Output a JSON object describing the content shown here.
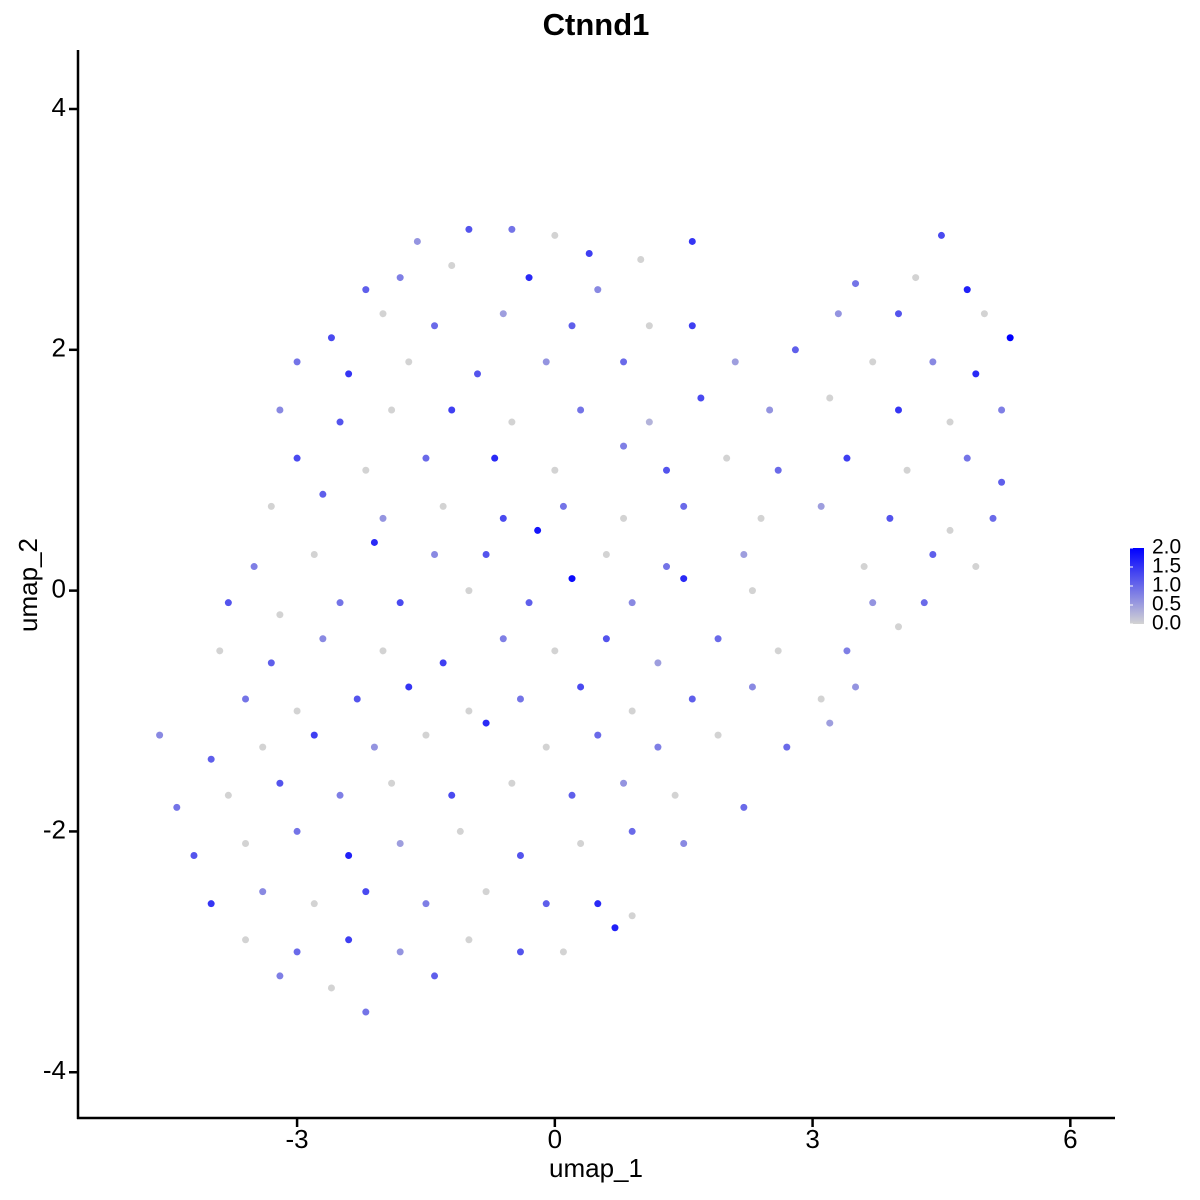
{
  "chart_data": {
    "type": "scatter",
    "title": "Ctnnd1",
    "x_label": "umap_1",
    "y_label": "umap_2",
    "xlim": [
      -5.55,
      6.52
    ],
    "ylim": [
      -4.38,
      4.49
    ],
    "xticks": [
      -3,
      0,
      3,
      6
    ],
    "yticks": [
      -4,
      -2,
      0,
      2,
      4
    ],
    "colors": [
      "#d3d3d3",
      "#0000ff"
    ],
    "colorbar": {
      "lim": [
        0,
        2
      ],
      "ticks": [
        {
          "value": 0,
          "label": "0.0"
        },
        {
          "value": 0.5,
          "label": "0.5"
        },
        {
          "value": 1,
          "label": "1.0"
        },
        {
          "value": 1.5,
          "label": "1.5"
        },
        {
          "value": 2,
          "label": "2.0"
        }
      ]
    },
    "x": [
      -1.6,
      -1.0,
      -0.5,
      0.0,
      0.4,
      1.6,
      4.5,
      -2.2,
      -1.8,
      -1.2,
      -0.3,
      0.5,
      1.0,
      3.5,
      4.2,
      4.8,
      -2.6,
      -2.0,
      -1.4,
      -0.6,
      0.2,
      1.1,
      1.6,
      3.3,
      4.0,
      5.0,
      5.3,
      -3.0,
      -2.4,
      -1.7,
      -0.9,
      -0.1,
      0.8,
      2.1,
      2.8,
      3.7,
      4.4,
      4.9,
      -3.2,
      -2.5,
      -1.9,
      -1.2,
      -0.5,
      0.3,
      1.1,
      1.7,
      2.5,
      3.2,
      4.0,
      4.6,
      5.2,
      -3.0,
      -2.2,
      -1.5,
      -0.7,
      0.0,
      0.8,
      1.3,
      2.0,
      2.6,
      3.4,
      4.1,
      4.8,
      5.2,
      -3.3,
      -2.7,
      -2.0,
      -1.3,
      -0.6,
      0.1,
      0.8,
      1.5,
      2.4,
      3.1,
      3.9,
      4.6,
      5.1,
      -3.5,
      -2.8,
      -2.1,
      -1.4,
      -0.8,
      -0.2,
      0.6,
      1.3,
      2.2,
      3.6,
      4.4,
      4.9,
      -3.8,
      -3.2,
      -2.5,
      -1.8,
      -1.0,
      -0.3,
      0.2,
      0.9,
      1.5,
      2.3,
      3.7,
      4.3,
      -3.9,
      -3.3,
      -2.7,
      -2.0,
      -1.3,
      -0.6,
      0.0,
      0.6,
      1.2,
      1.9,
      2.6,
      3.4,
      4.0,
      -3.6,
      -3.0,
      -2.3,
      -1.7,
      -1.0,
      -0.4,
      0.3,
      0.9,
      1.6,
      2.3,
      3.1,
      3.5,
      -4.6,
      -4.0,
      -3.4,
      -2.8,
      -2.1,
      -1.5,
      -0.8,
      -0.1,
      0.5,
      1.2,
      1.9,
      2.7,
      3.2,
      -4.4,
      -3.8,
      -3.2,
      -2.5,
      -1.9,
      -1.2,
      -0.5,
      0.2,
      0.8,
      1.4,
      2.2,
      -4.2,
      -3.6,
      -3.0,
      -2.4,
      -1.8,
      -1.1,
      -0.4,
      0.3,
      0.9,
      1.5,
      -4.0,
      -3.4,
      -2.8,
      -2.2,
      -1.5,
      -0.8,
      -0.1,
      0.5,
      0.9,
      -3.6,
      -3.0,
      -2.4,
      -1.8,
      -1.0,
      -0.4,
      0.1,
      0.7,
      -3.2,
      -2.6,
      -2.2,
      -1.4
    ],
    "y": [
      2.9,
      3.0,
      3.0,
      2.95,
      2.8,
      2.9,
      2.95,
      2.5,
      2.6,
      2.7,
      2.6,
      2.5,
      2.75,
      2.55,
      2.6,
      2.5,
      2.1,
      2.3,
      2.2,
      2.3,
      2.2,
      2.2,
      2.2,
      2.3,
      2.3,
      2.3,
      2.1,
      1.9,
      1.8,
      1.9,
      1.8,
      1.9,
      1.9,
      1.9,
      2.0,
      1.9,
      1.9,
      1.8,
      1.5,
      1.4,
      1.5,
      1.5,
      1.4,
      1.5,
      1.4,
      1.6,
      1.5,
      1.6,
      1.5,
      1.4,
      1.5,
      1.1,
      1.0,
      1.1,
      1.1,
      1.0,
      1.2,
      1.0,
      1.1,
      1.0,
      1.1,
      1.0,
      1.1,
      0.9,
      0.7,
      0.8,
      0.6,
      0.7,
      0.6,
      0.7,
      0.6,
      0.7,
      0.6,
      0.7,
      0.6,
      0.5,
      0.6,
      0.2,
      0.3,
      0.4,
      0.3,
      0.3,
      0.5,
      0.3,
      0.2,
      0.3,
      0.2,
      0.3,
      0.2,
      -0.1,
      -0.2,
      -0.1,
      -0.1,
      0.0,
      -0.1,
      0.1,
      -0.1,
      0.1,
      0.0,
      -0.1,
      -0.1,
      -0.5,
      -0.6,
      -0.4,
      -0.5,
      -0.6,
      -0.4,
      -0.5,
      -0.4,
      -0.6,
      -0.4,
      -0.5,
      -0.5,
      -0.3,
      -0.9,
      -1.0,
      -0.9,
      -0.8,
      -1.0,
      -0.9,
      -0.8,
      -1.0,
      -0.9,
      -0.8,
      -0.9,
      -0.8,
      -1.2,
      -1.4,
      -1.3,
      -1.2,
      -1.3,
      -1.2,
      -1.1,
      -1.3,
      -1.2,
      -1.3,
      -1.2,
      -1.3,
      -1.1,
      -1.8,
      -1.7,
      -1.6,
      -1.7,
      -1.6,
      -1.7,
      -1.6,
      -1.7,
      -1.6,
      -1.7,
      -1.8,
      -2.2,
      -2.1,
      -2.0,
      -2.2,
      -2.1,
      -2.0,
      -2.2,
      -2.1,
      -2.0,
      -2.1,
      -2.6,
      -2.5,
      -2.6,
      -2.5,
      -2.6,
      -2.5,
      -2.6,
      -2.6,
      -2.7,
      -2.9,
      -3.0,
      -2.9,
      -3.0,
      -2.9,
      -3.0,
      -3.0,
      -2.8,
      -3.2,
      -3.3,
      -3.5,
      -3.2
    ],
    "values": [
      0.6,
      1.2,
      0.9,
      0.0,
      1.4,
      1.5,
      1.3,
      1.1,
      0.8,
      0.0,
      1.6,
      0.7,
      0.0,
      0.9,
      0.0,
      1.7,
      1.3,
      0.0,
      1.0,
      0.5,
      1.1,
      0.0,
      1.4,
      0.6,
      1.2,
      0.0,
      2.0,
      0.9,
      1.5,
      0.0,
      1.2,
      0.6,
      1.0,
      0.5,
      1.1,
      0.0,
      0.7,
      1.6,
      0.7,
      1.2,
      0.0,
      1.4,
      0.0,
      0.9,
      0.3,
      1.3,
      0.6,
      0.0,
      1.5,
      0.0,
      0.8,
      1.3,
      0.0,
      1.0,
      1.6,
      0.0,
      0.8,
      1.2,
      0.0,
      1.0,
      1.4,
      0.0,
      0.9,
      1.1,
      0.0,
      1.1,
      0.6,
      0.0,
      1.3,
      0.9,
      0.0,
      1.0,
      0.0,
      0.5,
      1.2,
      0.0,
      1.0,
      0.8,
      0.0,
      1.6,
      0.7,
      1.2,
      1.8,
      0.0,
      0.9,
      0.5,
      0.0,
      1.1,
      0.0,
      1.2,
      0.0,
      0.9,
      1.3,
      0.0,
      1.1,
      1.9,
      0.7,
      1.6,
      0.0,
      0.6,
      1.0,
      0.0,
      1.1,
      0.7,
      0.0,
      1.4,
      0.8,
      0.0,
      1.2,
      0.5,
      1.0,
      0.0,
      0.8,
      0.0,
      0.9,
      0.0,
      1.2,
      1.5,
      0.0,
      0.9,
      1.3,
      0.0,
      1.1,
      0.7,
      0.0,
      0.6,
      0.7,
      1.1,
      0.0,
      1.4,
      0.6,
      0.0,
      1.6,
      0.0,
      1.0,
      0.8,
      0.0,
      1.0,
      0.5,
      0.9,
      0.0,
      1.2,
      0.8,
      0.0,
      1.3,
      0.0,
      1.1,
      0.6,
      0.0,
      1.0,
      1.2,
      0.0,
      0.9,
      1.7,
      0.5,
      0.0,
      1.2,
      0.0,
      1.0,
      0.7,
      1.5,
      0.7,
      0.0,
      1.3,
      0.8,
      0.0,
      1.1,
      1.6,
      0.0,
      0.0,
      1.0,
      1.4,
      0.6,
      0.0,
      1.2,
      0.0,
      1.7,
      0.8,
      0.0,
      0.9,
      1.1
    ]
  }
}
